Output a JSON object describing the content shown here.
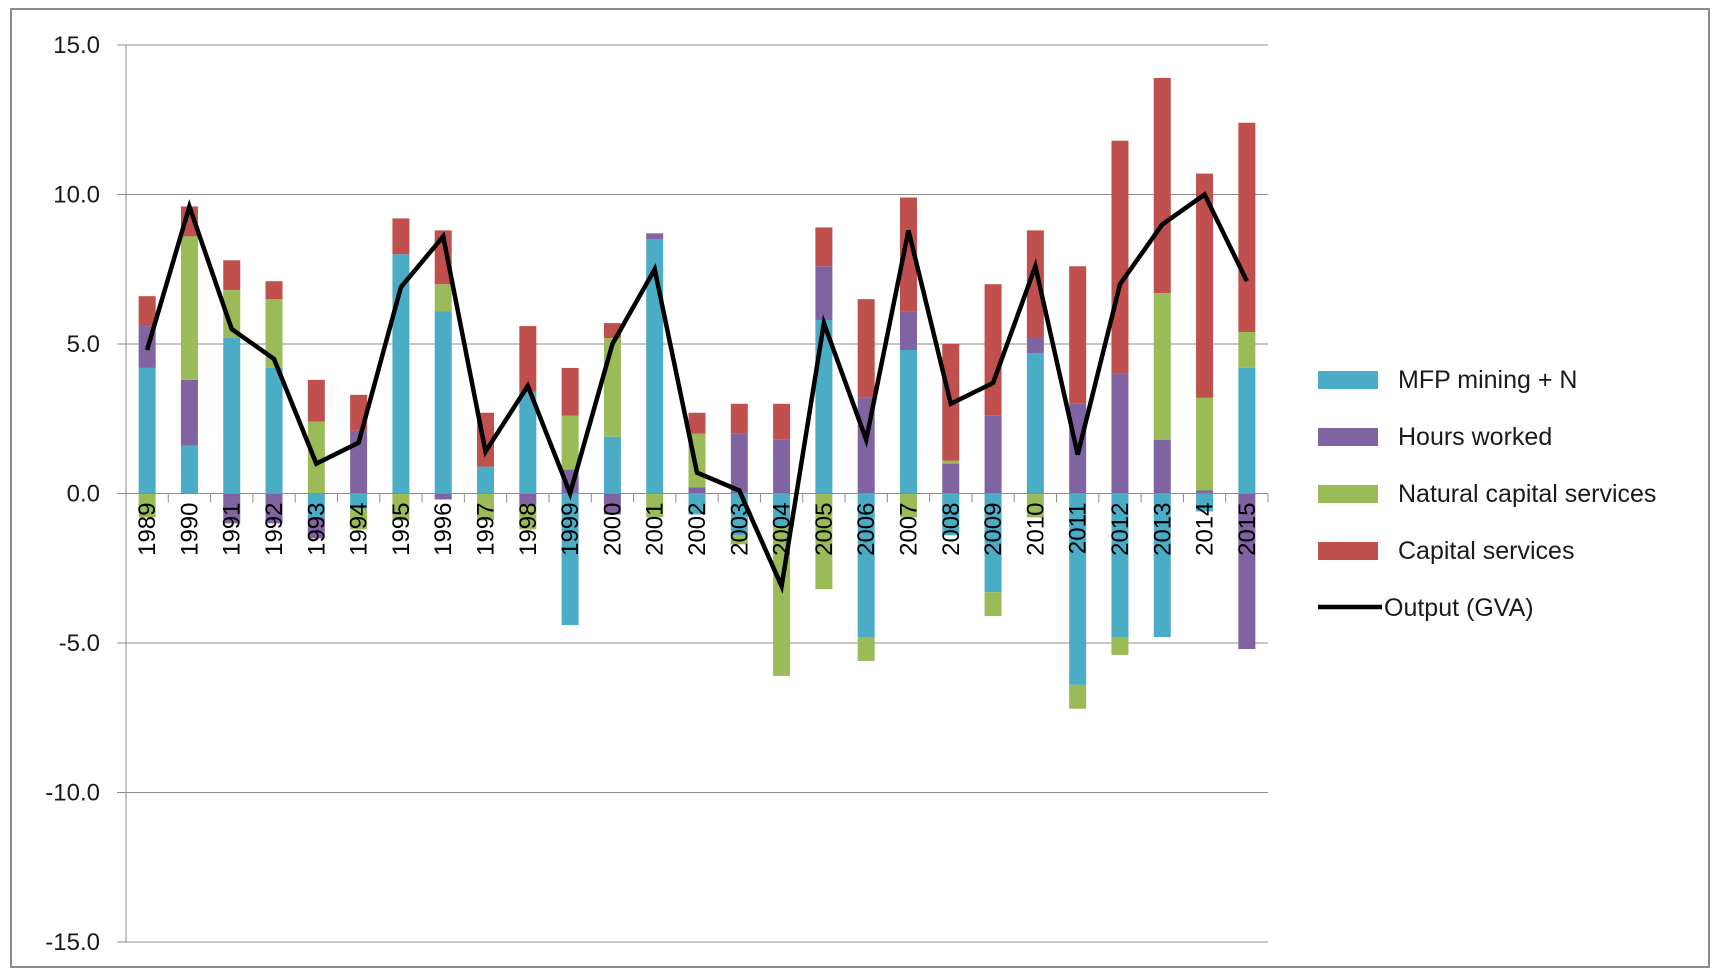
{
  "chart_data": {
    "type": "bar",
    "stacked": true,
    "categories": [
      "1989",
      "1990",
      "1991",
      "1992",
      "1993",
      "1994",
      "1995",
      "1996",
      "1997",
      "1998",
      "1999",
      "2000",
      "2001",
      "2002",
      "2003",
      "2004",
      "2005",
      "2006",
      "2007",
      "2008",
      "2009",
      "2010",
      "2011",
      "2012",
      "2013",
      "2014",
      "2015"
    ],
    "series": [
      {
        "name": "MFP mining + N",
        "color": "#4bacc6",
        "values": [
          4.2,
          1.6,
          5.2,
          4.2,
          -0.8,
          -0.5,
          8.0,
          6.1,
          0.9,
          3.4,
          -4.4,
          1.9,
          8.5,
          -0.7,
          -1.4,
          -1.1,
          5.8,
          -4.8,
          4.8,
          -1.4,
          -3.3,
          4.7,
          -6.4,
          -4.8,
          -4.8,
          -0.6,
          4.2
        ]
      },
      {
        "name": "Hours worked",
        "color": "#8064a2",
        "values": [
          1.4,
          2.2,
          -1.0,
          -1.0,
          -0.7,
          2.1,
          0.0,
          -0.2,
          0.0,
          -0.4,
          0.8,
          -0.7,
          0.2,
          0.2,
          2.0,
          1.8,
          1.8,
          3.2,
          1.3,
          1.0,
          2.6,
          0.5,
          3.0,
          4.0,
          1.8,
          0.1,
          -5.2
        ]
      },
      {
        "name": "Natural capital services",
        "color": "#9bbb59",
        "values": [
          -0.8,
          4.8,
          1.6,
          2.3,
          2.4,
          -0.7,
          -0.9,
          0.9,
          -0.9,
          -0.8,
          1.8,
          3.3,
          -0.8,
          1.8,
          -0.3,
          -5.0,
          -3.2,
          -0.8,
          -0.8,
          0.1,
          -0.8,
          -0.8,
          -0.8,
          -0.6,
          4.9,
          3.1,
          1.2
        ]
      },
      {
        "name": "Capital services",
        "color": "#c0504d",
        "values": [
          1.0,
          1.0,
          1.0,
          0.6,
          1.4,
          1.2,
          1.2,
          1.8,
          1.8,
          2.2,
          1.6,
          0.5,
          0.0,
          0.7,
          1.0,
          1.2,
          1.3,
          3.3,
          3.8,
          3.9,
          4.4,
          3.6,
          4.6,
          7.8,
          7.2,
          7.5,
          7.0
        ]
      }
    ],
    "line": {
      "name": "Output (GVA)",
      "color": "#000000",
      "values": [
        4.8,
        9.6,
        5.5,
        4.5,
        1.0,
        1.7,
        6.9,
        8.6,
        1.4,
        3.6,
        0.0,
        5.0,
        7.5,
        0.7,
        0.1,
        -3.1,
        5.7,
        1.8,
        8.8,
        3.0,
        3.7,
        7.6,
        1.3,
        7.0,
        9.0,
        10.0,
        7.1
      ]
    },
    "yticks": [
      "15.0",
      "10.0",
      "5.0",
      "0.0",
      "-5.0",
      "-10.0",
      "-15.0"
    ],
    "ylim": [
      -15,
      15
    ],
    "legend_position": "right",
    "grid": true
  }
}
